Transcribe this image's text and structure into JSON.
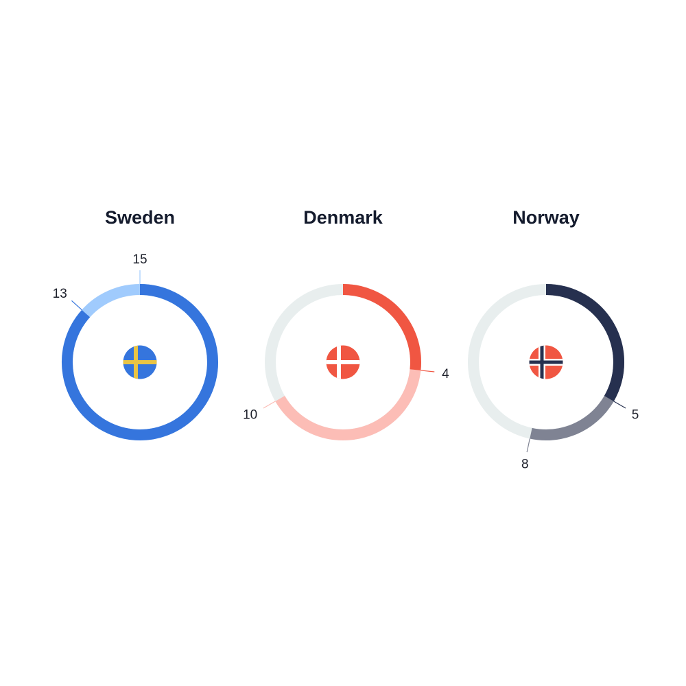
{
  "chart_data": [
    {
      "type": "donut",
      "title": "Sweden",
      "max": 15,
      "segments": [
        {
          "label": "13",
          "value": 13,
          "color": "#3575dd"
        },
        {
          "label": "15",
          "value": 15,
          "color": "#a0cbfd"
        }
      ],
      "track_color": "#e8eeee",
      "flag": {
        "name": "sweden-flag-icon",
        "field": "#3575dd",
        "cross": "#e9c445"
      }
    },
    {
      "type": "donut",
      "title": "Denmark",
      "max": 15,
      "segments": [
        {
          "label": "4",
          "value": 4,
          "color": "#f05642"
        },
        {
          "label": "10",
          "value": 10,
          "color": "#fcbdb6"
        }
      ],
      "track_color": "#e8eeee",
      "flag": {
        "name": "denmark-flag-icon",
        "field": "#f05642",
        "cross": "#ffffff"
      }
    },
    {
      "type": "donut",
      "title": "Norway",
      "max": 15,
      "segments": [
        {
          "label": "5",
          "value": 5,
          "color": "#26304f"
        },
        {
          "label": "8",
          "value": 8,
          "color": "#7f8393"
        }
      ],
      "track_color": "#e8eeee",
      "flag": {
        "name": "norway-flag-icon",
        "field": "#f05642",
        "cross": "#26304f",
        "cross_border": "#ffffff"
      }
    }
  ]
}
